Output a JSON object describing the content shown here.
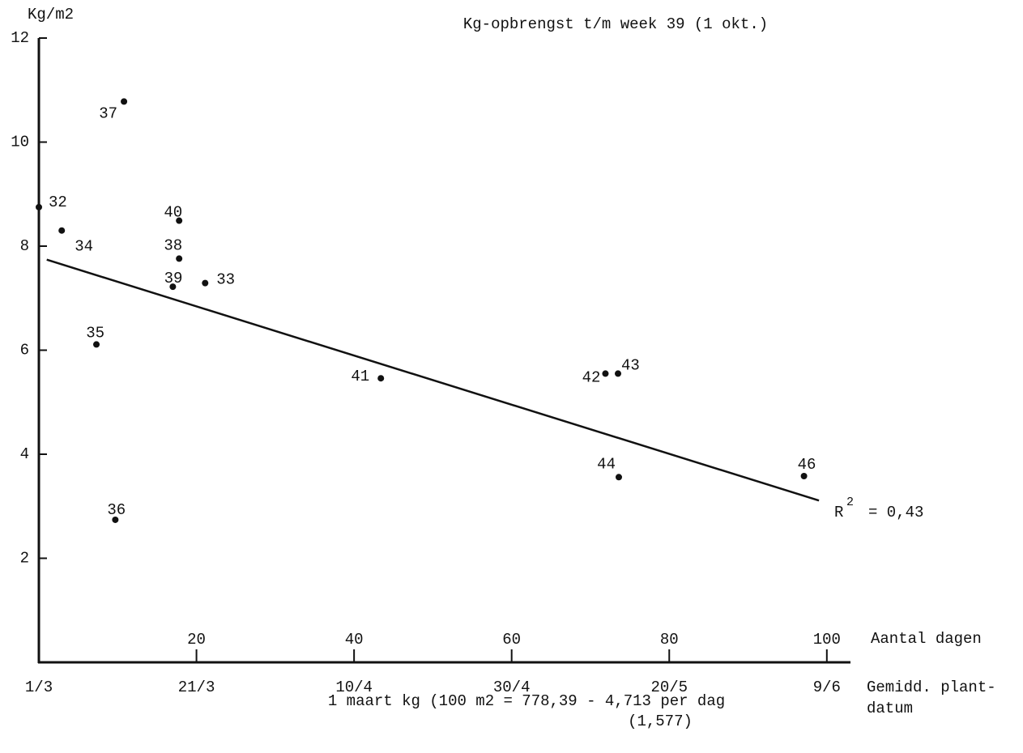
{
  "chart_data": {
    "type": "scatter",
    "title": "Kg-opbrengst t/m week 39 (1 okt.)",
    "y_label": "Kg/m2",
    "x_label": "Aantal dagen",
    "date_axis_label": [
      "Gemidd. plant-",
      "datum"
    ],
    "formula": [
      "1 maart kg (100 m2 = 778,39 - 4,713 per dag",
      "(1,577)"
    ],
    "r_squared": [
      "R",
      "2",
      "= 0,43"
    ],
    "x": [
      0,
      2.9,
      10.8,
      7.3,
      9.7,
      17.8,
      17.8,
      17.0,
      21.1,
      43.4,
      71.9,
      73.5,
      73.6,
      97.1
    ],
    "values": [
      8.75,
      8.3,
      10.78,
      6.11,
      2.74,
      8.49,
      7.76,
      7.22,
      7.29,
      5.46,
      5.55,
      5.55,
      3.56,
      3.58
    ],
    "point_labels": [
      "32",
      "34",
      "37",
      "35",
      "36",
      "40",
      "38",
      "39",
      "33",
      "41",
      "42",
      "43",
      "44",
      "46"
    ],
    "color": "#111111",
    "trend": {
      "x": [
        1,
        99
      ],
      "values": [
        7.74,
        3.11
      ]
    },
    "xlim": [
      0,
      103
    ],
    "ylim": [
      0,
      12
    ],
    "xticks": [
      20,
      40,
      60,
      80,
      100
    ],
    "date_ticks": [
      {
        "value": 0,
        "label": "1/3"
      },
      {
        "value": 20,
        "label": "21/3"
      },
      {
        "value": 40,
        "label": "10/4"
      },
      {
        "value": 60,
        "label": "30/4"
      },
      {
        "value": 80,
        "label": "20/5"
      },
      {
        "value": 100,
        "label": "9/6"
      }
    ],
    "yticks": [
      2,
      4,
      6,
      8,
      10,
      12
    ]
  }
}
